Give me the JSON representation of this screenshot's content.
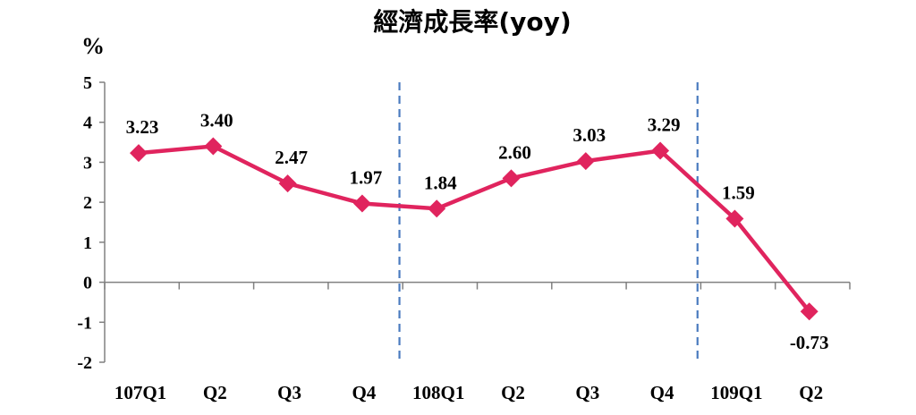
{
  "chart_data": {
    "type": "line",
    "title": "經濟成長率(yoy)",
    "ylabel": "%",
    "xlabel": "",
    "categories": [
      "107Q1",
      "Q2",
      "Q3",
      "Q4",
      "108Q1",
      "Q2",
      "Q3",
      "Q4",
      "109Q1",
      "Q2"
    ],
    "series": [
      {
        "values": [
          3.23,
          3.4,
          2.47,
          1.97,
          1.84,
          2.6,
          3.03,
          3.29,
          1.59,
          -0.73
        ],
        "labels": [
          "3.23",
          "3.40",
          "2.47",
          "1.97",
          "1.84",
          "2.60",
          "3.03",
          "3.29",
          "1.59",
          "-0.73"
        ],
        "color": "#e0245e",
        "marker": "diamond"
      }
    ],
    "ylim": [
      -2,
      5
    ],
    "yticks": [
      "5",
      "4",
      "3",
      "2",
      "1",
      "0",
      "-1",
      "-2"
    ],
    "year_dividers_after": [
      "Q4",
      "Q4"
    ],
    "divider_color": "#4a7bbf",
    "grid": false,
    "legend": "none"
  }
}
